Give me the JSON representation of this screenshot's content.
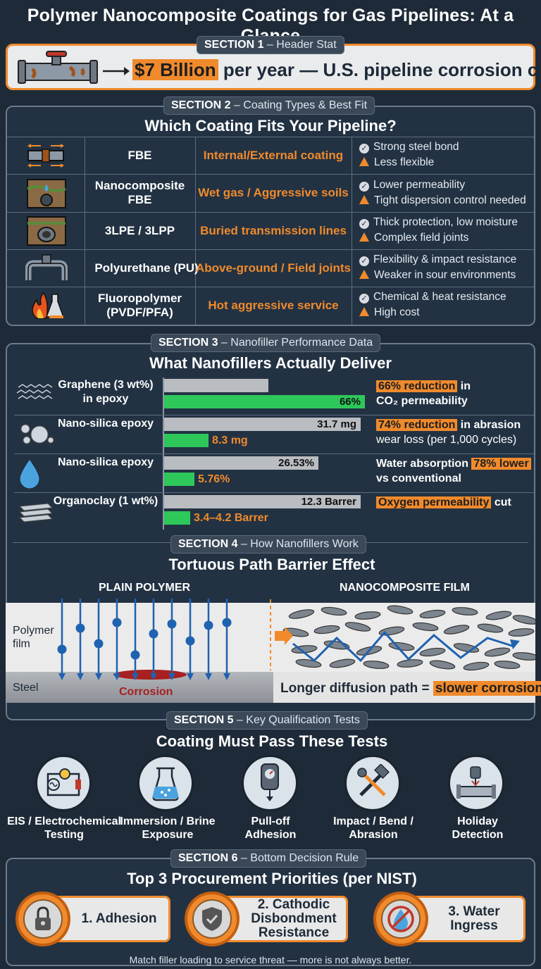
{
  "title": "Polymer Nanocomposite Coatings for Gas Pipelines: At a Glance",
  "section1": {
    "tag_label": "SECTION 1",
    "tag_text": "– Header Stat",
    "highlight": "$7 Billion",
    "stat_text": "per year — U.S. pipeline corrosion cost"
  },
  "section2": {
    "tag_label": "SECTION 2",
    "tag_text": "– Coating Types & Best Fit",
    "subtitle": "Which Coating Fits Your Pipeline?",
    "rows": [
      {
        "icon": "pipe-joint-icon",
        "name": "FBE",
        "fit": "Internal/External coating",
        "pro": "Strong steel bond",
        "con": "Less flexible"
      },
      {
        "icon": "wet-soil-pipe-icon",
        "name": "Nanocomposite FBE",
        "fit": "Wet gas / Aggressive soils",
        "pro": "Lower permeability",
        "con": "Tight dispersion control needed"
      },
      {
        "icon": "buried-pipe-icon",
        "name": "3LPE / 3LPP",
        "fit": "Buried transmission lines",
        "pro": "Thick protection, low moisture",
        "con": "Complex field joints"
      },
      {
        "icon": "above-ground-pipe-icon",
        "name": "Polyurethane (PU)",
        "fit": "Above-ground / Field joints",
        "pro": "Flexibility & impact resistance",
        "con": "Weaker in sour environments"
      },
      {
        "icon": "flame-flask-icon",
        "name": "Fluoropolymer (PVDF/PFA)",
        "fit": "Hot aggressive service",
        "pro": "Chemical & heat resistance",
        "con": "High cost"
      }
    ]
  },
  "section3": {
    "tag_label": "SECTION 3",
    "tag_text": "– Nanofiller Performance Data",
    "subtitle": "What Nanofillers Actually Deliver",
    "rows": [
      {
        "icon": "graphene-icon",
        "name": "Graphene (3 wt%) in epoxy",
        "grey_frac": 0.52,
        "green_frac": 1.0,
        "grey_label": "",
        "green_label": "66%",
        "green_label_inside": true,
        "hl": "66% reduction",
        "note_a": "in",
        "note_b": "CO₂ permeability"
      },
      {
        "icon": "silica-particles-icon",
        "name": "Nano-silica epoxy",
        "grey_frac": 0.98,
        "green_frac": 0.22,
        "grey_label": "31.7 mg",
        "green_label": "8.3 mg",
        "green_label_inside": false,
        "hl": "74% reduction",
        "note_a": "in abrasion",
        "note_b": "wear loss (per 1,000 cycles)"
      },
      {
        "icon": "water-drop-icon",
        "name": "Nano-silica epoxy",
        "grey_frac": 0.77,
        "green_frac": 0.15,
        "grey_label": "26.53%",
        "green_label": "5.76%",
        "green_label_inside": false,
        "hl": "78% lower",
        "note_pre": "Water absorption",
        "note_b": "vs conventional"
      },
      {
        "icon": "clay-layers-icon",
        "name": "Organoclay (1 wt%)",
        "grey_frac": 0.98,
        "green_frac": 0.13,
        "grey_label": "12.3 Barrer",
        "green_label": "3.4–4.2 Barrer",
        "green_label_inside": false,
        "hl": "Oxygen permeability",
        "note_a": "cut",
        "note_b": ""
      }
    ]
  },
  "section4": {
    "tag_label": "SECTION 4",
    "tag_text": "– How Nanofillers Work",
    "subtitle": "Tortuous Path Barrier Effect",
    "left_label": "PLAIN POLYMER",
    "right_label": "NANOCOMPOSITE FILM",
    "film_label": "Polymer film",
    "steel_label": "Steel",
    "corrosion_label": "Corrosion",
    "caption": "Longer diffusion path =",
    "caption_hl": "slower corrosion"
  },
  "section5": {
    "tag_label": "SECTION 5",
    "tag_text": "– Key Qualification Tests",
    "subtitle": "Coating Must Pass These Tests",
    "tests": [
      {
        "icon": "circuit-icon",
        "label": "EIS / Electrochemical Testing"
      },
      {
        "icon": "beaker-icon",
        "label": "Immersion / Brine Exposure"
      },
      {
        "icon": "adhesion-gauge-icon",
        "label": "Pull-off Adhesion"
      },
      {
        "icon": "hammer-wrench-icon",
        "label": "Impact / Bend / Abrasion"
      },
      {
        "icon": "holiday-detector-icon",
        "label": "Holiday Detection"
      }
    ]
  },
  "section6": {
    "tag_label": "SECTION 6",
    "tag_text": "– Bottom Decision Rule",
    "subtitle": "Top 3 Procurement Priorities (per NIST)",
    "priorities": [
      {
        "icon": "lock-icon",
        "label": "1. Adhesion"
      },
      {
        "icon": "shield-check-icon",
        "label": "2. Cathodic Disbondment Resistance"
      },
      {
        "icon": "no-water-icon",
        "label": "3. Water Ingress"
      }
    ],
    "footer": "Match filler loading to service threat — more is not always better."
  },
  "colors": {
    "accent": "#f08a2c",
    "good": "#2ec85a",
    "bg": "#1e2a38"
  }
}
